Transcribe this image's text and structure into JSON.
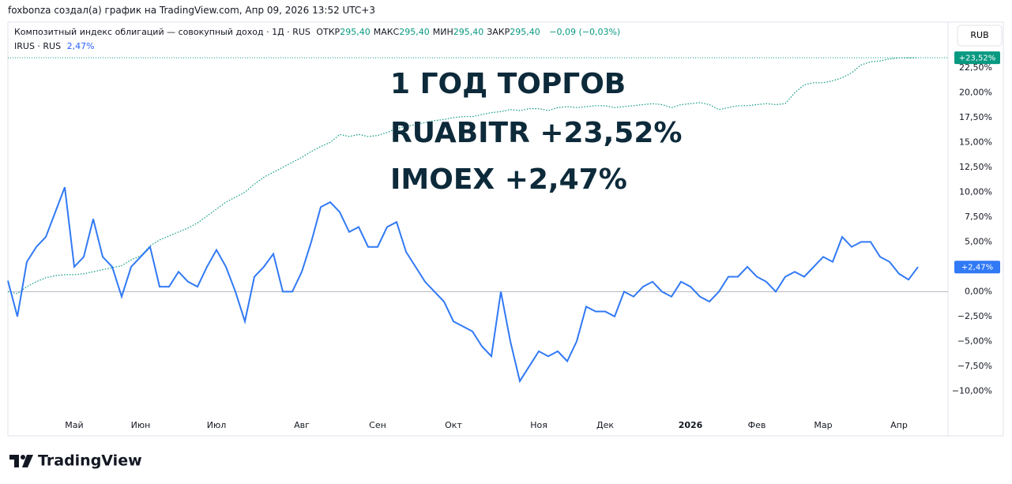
{
  "header": {
    "text": "foxbonza создал(а) график на TradingView.com, Апр 09, 2026 13:52 UTC+3"
  },
  "toolbar": {
    "currency": "RUB"
  },
  "footer": {
    "brand": "TradingView"
  },
  "chart_data": {
    "type": "line",
    "annotations": [
      "1 ГОД ТОРГОВ",
      "RUABITR +23,52%",
      "IMOEX +2,47%"
    ],
    "stats": [
      {
        "label": "ОТКР",
        "value": "295,40"
      },
      {
        "label": "МАКС",
        "value": "295,40"
      },
      {
        "label": "МИН",
        "value": "295,40"
      },
      {
        "label": "ЗАКР",
        "value": "295,40"
      }
    ],
    "change": "−0,09 (−0,03%)",
    "categories": [
      null,
      null,
      null,
      null,
      null,
      null,
      null,
      "Май",
      null,
      null,
      null,
      null,
      null,
      null,
      "Июн",
      null,
      null,
      null,
      null,
      null,
      null,
      null,
      "Июл",
      null,
      null,
      null,
      null,
      null,
      null,
      null,
      null,
      "Авг",
      null,
      null,
      null,
      null,
      null,
      null,
      null,
      "Сен",
      null,
      null,
      null,
      null,
      null,
      null,
      null,
      "Окт",
      null,
      null,
      null,
      null,
      null,
      null,
      null,
      null,
      "Ноя",
      null,
      null,
      null,
      null,
      null,
      null,
      "Дек",
      null,
      null,
      null,
      null,
      null,
      null,
      null,
      null,
      "2026",
      null,
      null,
      null,
      null,
      null,
      null,
      "Фев",
      null,
      null,
      null,
      null,
      null,
      null,
      "Мар",
      null,
      null,
      null,
      null,
      null,
      null,
      null,
      "Апр",
      null,
      null
    ],
    "series": [
      {
        "name": "Композитный индекс облигаций — совокупный доход · 1Д · RUS",
        "color": "#089981",
        "line_style": "dotted",
        "last_value_label": "+23,52%",
        "values": [
          0,
          -0.2,
          0.5,
          1,
          1.4,
          1.6,
          1.7,
          1.7,
          1.8,
          2,
          2.2,
          2.4,
          2.6,
          3.2,
          3.6,
          4.6,
          5.2,
          5.6,
          6,
          6.4,
          6.9,
          7.6,
          8.3,
          9,
          9.5,
          10,
          10.8,
          11.5,
          12,
          12.5,
          13,
          13.5,
          14.1,
          14.6,
          15,
          15.8,
          15.6,
          15.8,
          15.6,
          15.7,
          16,
          16.4,
          16.6,
          16.8,
          17,
          17.2,
          17.3,
          17.5,
          17.6,
          17.6,
          17.8,
          18,
          18.1,
          18.3,
          18.2,
          18.4,
          18.4,
          18.2,
          18.5,
          18.6,
          18.5,
          18.6,
          18.7,
          18.7,
          18.5,
          18.6,
          18.7,
          18.8,
          18.9,
          18.8,
          18.5,
          18.8,
          18.9,
          19,
          18.8,
          18.3,
          18.5,
          18.7,
          18.7,
          18.8,
          18.9,
          18.8,
          18.9,
          20,
          20.8,
          21,
          21,
          21.2,
          21.5,
          22,
          22.8,
          23.1,
          23.2,
          23.4,
          23.5,
          23.5,
          23.52
        ]
      },
      {
        "name": "IRUS · RUS",
        "color": "#3179f5",
        "line_style": "solid",
        "legend_value": "2,47%",
        "last_value_label": "+2,47%",
        "values": [
          1.1,
          -2.5,
          3,
          4.5,
          5.5,
          8,
          10.5,
          2.5,
          3.5,
          7.3,
          3.5,
          2.5,
          -0.5,
          2.5,
          3.5,
          4.5,
          0.5,
          0.5,
          2,
          1,
          0.5,
          2.5,
          4.2,
          2.5,
          0,
          -3,
          1.5,
          2.5,
          3.8,
          0,
          0,
          2,
          5,
          8.5,
          9,
          8,
          6,
          6.5,
          4.5,
          4.5,
          6.5,
          7,
          4,
          2.5,
          1,
          0,
          -1,
          -3,
          -3.5,
          -4,
          -5.5,
          -6.5,
          0,
          -5,
          -9,
          -7.5,
          -6,
          -6.5,
          -6,
          -7,
          -5,
          -1.5,
          -2,
          -2,
          -2.5,
          0,
          -0.5,
          0.5,
          1,
          0,
          -0.5,
          1,
          0.5,
          -0.5,
          -1,
          0,
          1.5,
          1.5,
          2.5,
          1.5,
          1,
          0,
          1.5,
          2,
          1.5,
          2.5,
          3.5,
          3,
          5.5,
          4.5,
          5,
          5,
          3.5,
          3,
          1.8,
          1.2,
          2.47
        ]
      }
    ],
    "ylim": [
      -14.5,
      27.1
    ],
    "yticks": [
      {
        "value": -10,
        "label": "−10,00%"
      },
      {
        "value": -7.5,
        "label": "−7,50%"
      },
      {
        "value": -5,
        "label": "−5,00%"
      },
      {
        "value": -2.5,
        "label": "−2,50%"
      },
      {
        "value": 0,
        "label": "0,00%"
      },
      {
        "value": 2.5,
        "label": "2,50%"
      },
      {
        "value": 5,
        "label": "5,00%"
      },
      {
        "value": 7.5,
        "label": "7,50%"
      },
      {
        "value": 10,
        "label": "10,00%"
      },
      {
        "value": 12.5,
        "label": "12,50%"
      },
      {
        "value": 15,
        "label": "15,00%"
      },
      {
        "value": 17.5,
        "label": "17,50%"
      },
      {
        "value": 20,
        "label": "20,00%"
      },
      {
        "value": 22.5,
        "label": "22,50%"
      }
    ],
    "grid": false
  }
}
